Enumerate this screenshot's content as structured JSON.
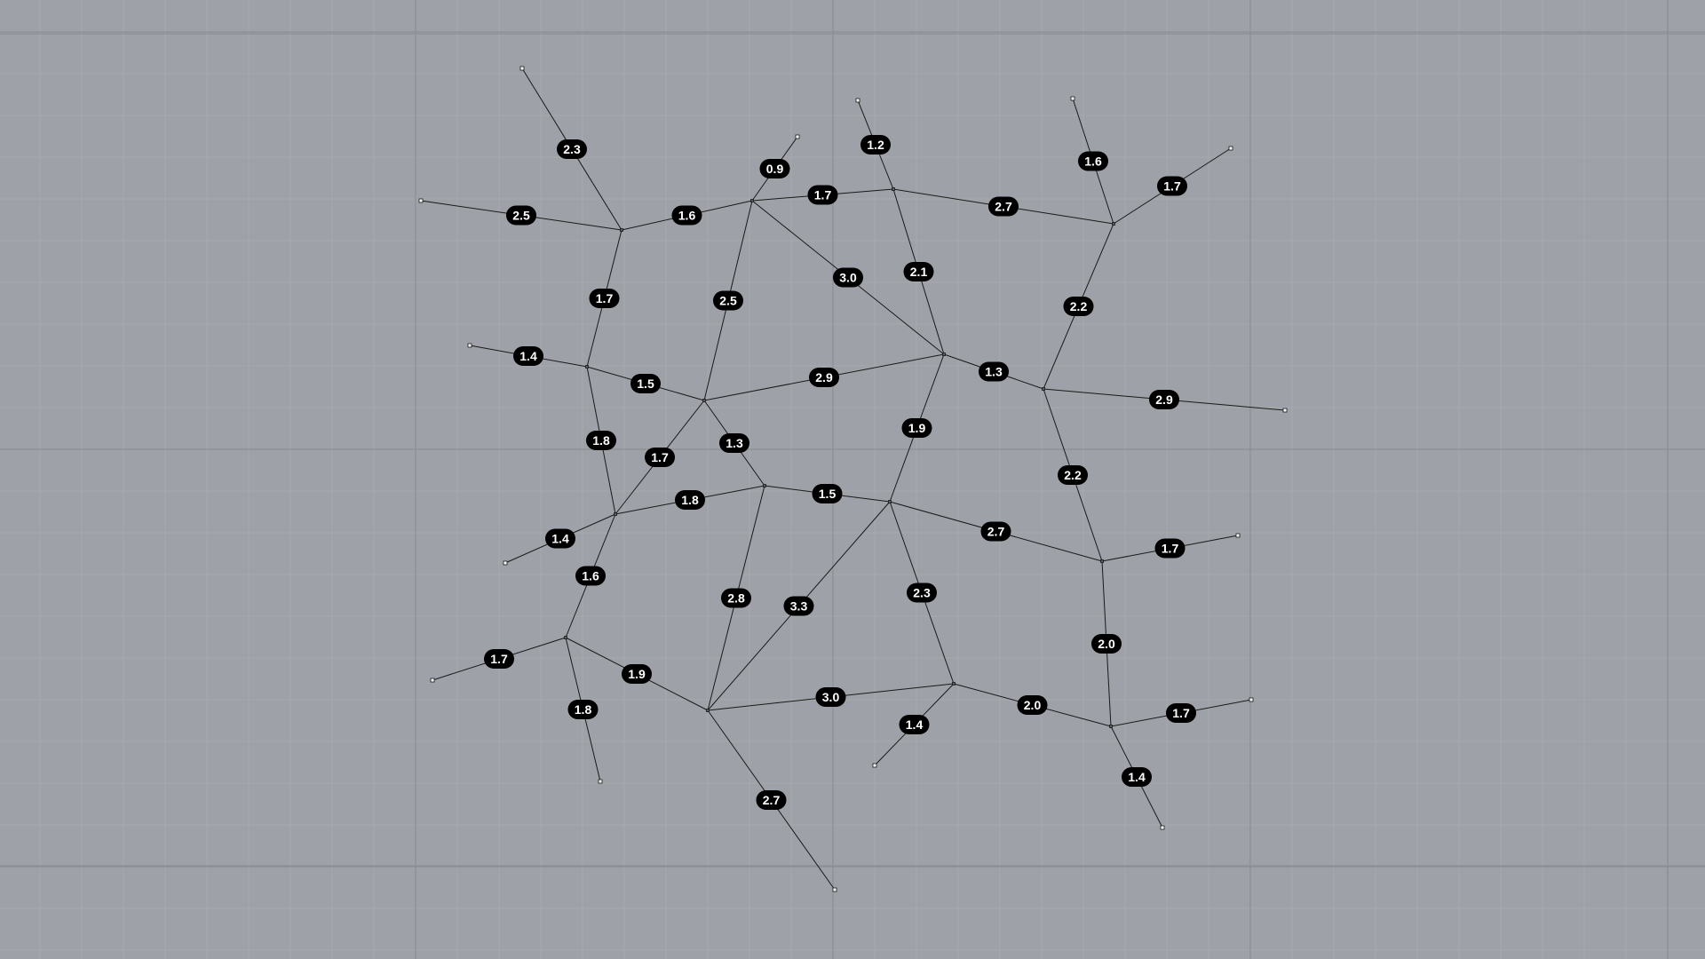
{
  "viewport": {
    "background": "#9ea1a7",
    "grid_minor_color": "#a6a9ae",
    "grid_major_color": "#8c8f95"
  },
  "graph": {
    "edge_color": "#1a1a1a",
    "label_fill": "#000000",
    "label_text_color": "#ffffff",
    "edges": [
      {
        "a": "L1",
        "b": "A",
        "label": "2.3"
      },
      {
        "a": "L2",
        "b": "A",
        "label": "2.5"
      },
      {
        "a": "A",
        "b": "B",
        "label": "1.6"
      },
      {
        "a": "L3",
        "b": "B",
        "label": "0.9"
      },
      {
        "a": "B",
        "b": "C",
        "label": "1.7"
      },
      {
        "a": "L4",
        "b": "C",
        "label": "1.2"
      },
      {
        "a": "C",
        "b": "D",
        "label": "2.7"
      },
      {
        "a": "L5",
        "b": "D",
        "label": "1.6"
      },
      {
        "a": "D",
        "b": "L6",
        "label": "1.7"
      },
      {
        "a": "A",
        "b": "E",
        "label": "1.7"
      },
      {
        "a": "B",
        "b": "F",
        "label": "2.5"
      },
      {
        "a": "B",
        "b": "G",
        "label": "3.0"
      },
      {
        "a": "C",
        "b": "G",
        "label": "2.1"
      },
      {
        "a": "D",
        "b": "H",
        "label": "2.2"
      },
      {
        "a": "L7",
        "b": "E",
        "label": "1.4"
      },
      {
        "a": "E",
        "b": "F",
        "label": "1.5"
      },
      {
        "a": "F",
        "b": "G",
        "label": "2.9"
      },
      {
        "a": "G",
        "b": "H",
        "label": "1.3"
      },
      {
        "a": "H",
        "b": "L8",
        "label": "2.9"
      },
      {
        "a": "E",
        "b": "I",
        "label": "1.8"
      },
      {
        "a": "F",
        "b": "I",
        "label": "1.7"
      },
      {
        "a": "F",
        "b": "J",
        "label": "1.3"
      },
      {
        "a": "G",
        "b": "K",
        "label": "1.9"
      },
      {
        "a": "H",
        "b": "M",
        "label": "2.2"
      },
      {
        "a": "I",
        "b": "J",
        "label": "1.8"
      },
      {
        "a": "J",
        "b": "K",
        "label": "1.5"
      },
      {
        "a": "K",
        "b": "M",
        "label": "2.7"
      },
      {
        "a": "M",
        "b": "L9",
        "label": "1.7"
      },
      {
        "a": "L10",
        "b": "I",
        "label": "1.4"
      },
      {
        "a": "I",
        "b": "N",
        "label": "1.6"
      },
      {
        "a": "J",
        "b": "O",
        "label": "2.8"
      },
      {
        "a": "K",
        "b": "O",
        "label": "3.3"
      },
      {
        "a": "K",
        "b": "P",
        "label": "2.3"
      },
      {
        "a": "M",
        "b": "Q",
        "label": "2.0"
      },
      {
        "a": "L11",
        "b": "N",
        "label": "1.7"
      },
      {
        "a": "N",
        "b": "O",
        "label": "1.9"
      },
      {
        "a": "O",
        "b": "P",
        "label": "3.0"
      },
      {
        "a": "P",
        "b": "Q",
        "label": "2.0"
      },
      {
        "a": "Q",
        "b": "L12",
        "label": "1.7"
      },
      {
        "a": "N",
        "b": "L13",
        "label": "1.8"
      },
      {
        "a": "P",
        "b": "L14",
        "label": "1.4"
      },
      {
        "a": "O",
        "b": "L15",
        "label": "2.7"
      },
      {
        "a": "Q",
        "b": "L16",
        "label": "1.4"
      }
    ]
  }
}
